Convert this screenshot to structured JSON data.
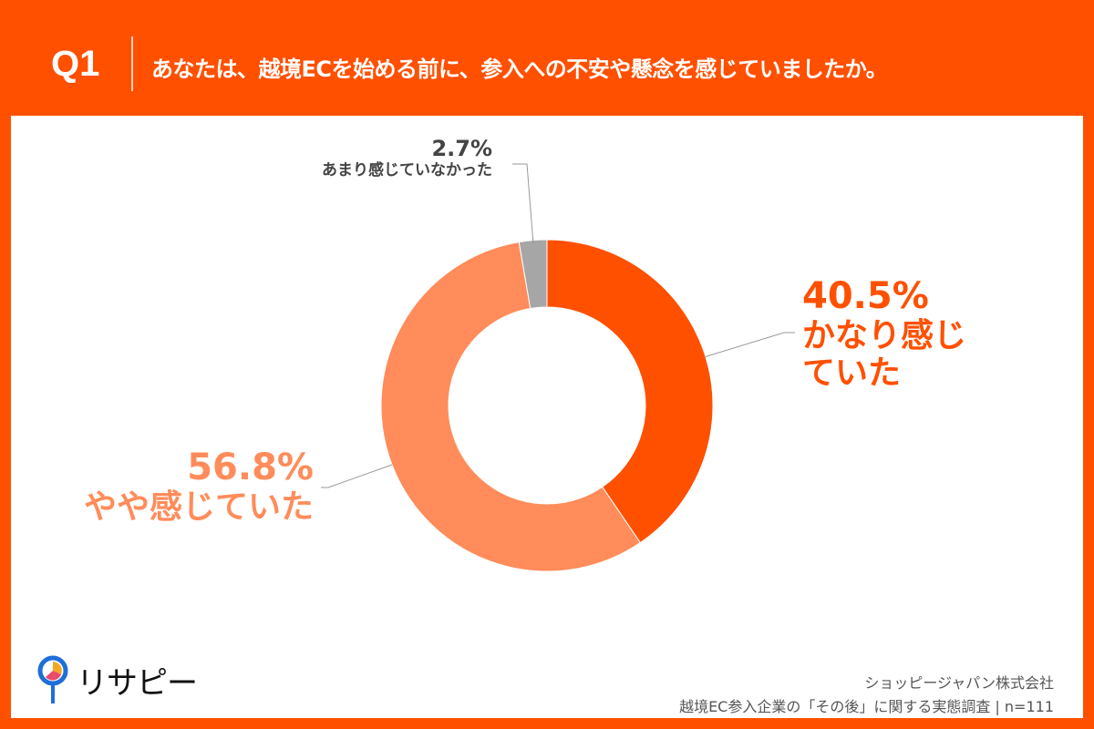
{
  "header": {
    "question_no": "Q1",
    "title": "あなたは、越境ECを始める前に、参入への不安や懸念を感じていましたか。"
  },
  "chart_data": {
    "type": "pie",
    "variant": "donut",
    "start": "top, clockwise",
    "slices": [
      {
        "label": "かなり感じていた",
        "value": 40.5,
        "display": "40.5%",
        "color": "#FF5000"
      },
      {
        "label": "やや感じていた",
        "value": 56.8,
        "display": "56.8%",
        "color": "#FF8C5A"
      },
      {
        "label": "あまり感じていなかった",
        "value": 2.7,
        "display": "2.7%",
        "color": "#A6A6A6"
      }
    ]
  },
  "labels": {
    "l0a": "かなり感じ",
    "l0b": "ていた"
  },
  "logo": {
    "text": "リサピー"
  },
  "footer": {
    "company": "ショッピージャパン株式会社",
    "source": "越境EC参入企業の「その後」に関する実態調査 | n=111"
  }
}
